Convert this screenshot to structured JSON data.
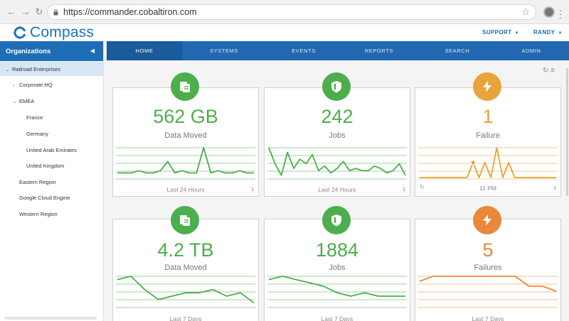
{
  "browser": {
    "url": "https://commander.cobaltiron.com",
    "back_icon": "back-arrow-icon",
    "forward_icon": "forward-arrow-icon",
    "reload_icon": "reload-icon",
    "lock_icon": "lock-icon",
    "bookmark_icon": "star-icon",
    "menu_icon": "kebab-menu-icon"
  },
  "app": {
    "logo_text": "Compass",
    "menu": [
      {
        "label": "SUPPORT"
      },
      {
        "label": "RANDY"
      }
    ]
  },
  "sidebar": {
    "title": "Organizations",
    "items": [
      {
        "label": "Railroad Enterprises",
        "selected": true,
        "caret": "down"
      },
      {
        "label": "Corporate HQ",
        "caret": "right"
      },
      {
        "label": "EMEA",
        "caret": "down"
      },
      {
        "label": "France"
      },
      {
        "label": "Germany"
      },
      {
        "label": "United Arab Emirates"
      },
      {
        "label": "United Kingdom"
      },
      {
        "label": "Eastern Region"
      },
      {
        "label": "Google Cloud Engine"
      },
      {
        "label": "Western Region"
      }
    ]
  },
  "tabs": [
    {
      "label": "HOME",
      "active": true
    },
    {
      "label": "SYSTEMS"
    },
    {
      "label": "EVENTS"
    },
    {
      "label": "REPORTS"
    },
    {
      "label": "SEARCH"
    },
    {
      "label": "ADMIN"
    }
  ],
  "colors": {
    "green": "#4cae4c",
    "orange": "#f0923a",
    "blue": "#1e6eb7",
    "failure_orange": "#e8a33a",
    "failures_orange": "#e9883a"
  },
  "cards": [
    {
      "icon": "copy-documents-icon",
      "value": "562 GB",
      "label": "Data Moved",
      "footer": "Last 24 Hours",
      "color": "#4cae4c",
      "trend": [
        2,
        2,
        2,
        3,
        2,
        2,
        3,
        7,
        2,
        3,
        2,
        2,
        13,
        2,
        3,
        2,
        2,
        3,
        2,
        2
      ]
    },
    {
      "icon": "shield-icon",
      "value": "242",
      "label": "Jobs",
      "footer": "Last 24 Hours",
      "color": "#4cae4c",
      "trend": [
        13,
        6,
        1,
        11,
        4,
        8,
        6,
        10,
        3,
        5,
        2,
        4,
        7,
        3,
        4,
        3,
        3,
        5,
        4,
        2,
        3,
        6,
        1
      ]
    },
    {
      "icon": "lightning-icon",
      "value": "1",
      "label": "Failure",
      "footer": "11 PM",
      "color": "#e8a33a",
      "trend": [
        0,
        0,
        0,
        0,
        0,
        0,
        0,
        0,
        0,
        1,
        0,
        1,
        0,
        2,
        0,
        1,
        0,
        0,
        0,
        0,
        0,
        0,
        0,
        0
      ]
    },
    {
      "icon": "copy-documents-icon",
      "value": "4.2 TB",
      "label": "Data Moved",
      "footer": "Last 7 Days",
      "color": "#4cae4c",
      "trend": [
        8,
        9,
        5,
        2,
        3,
        4,
        4,
        5,
        3,
        4,
        1
      ]
    },
    {
      "icon": "shield-icon",
      "value": "1884",
      "label": "Jobs",
      "footer": "Last 7 Days",
      "color": "#4cae4c",
      "trend": [
        8,
        9,
        8,
        7,
        6,
        4,
        3,
        4,
        3,
        3,
        3
      ]
    },
    {
      "icon": "lightning-icon",
      "value": "5",
      "label": "Failures",
      "footer": "Last 7 Days",
      "color": "#e9883a",
      "trend": [
        5,
        6,
        6,
        6,
        6,
        6,
        6,
        6,
        4,
        4,
        3
      ]
    }
  ]
}
